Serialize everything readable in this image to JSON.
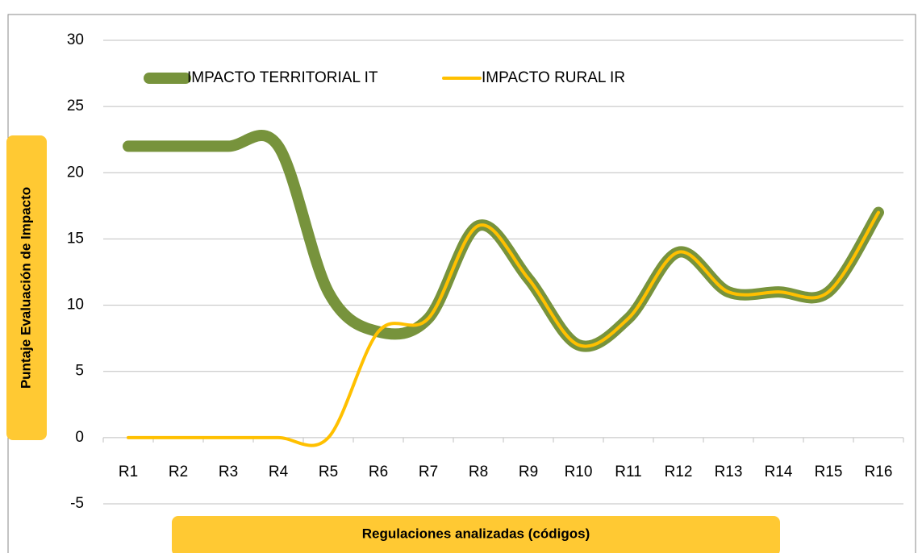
{
  "chart_data": {
    "type": "line",
    "categories": [
      "R1",
      "R2",
      "R3",
      "R4",
      "R5",
      "R6",
      "R7",
      "R8",
      "R9",
      "R10",
      "R11",
      "R12",
      "R13",
      "R14",
      "R15",
      "R16"
    ],
    "series": [
      {
        "name": "IMPACTO TERRITORIAL IT",
        "color": "#77933c",
        "values": [
          22,
          22,
          22,
          22,
          11,
          8,
          9,
          16,
          12,
          7,
          9,
          14,
          11,
          11,
          11,
          17
        ]
      },
      {
        "name": "IMPACTO RURAL IR",
        "color": "#ffc000",
        "values": [
          0,
          0,
          0,
          0,
          0,
          8,
          9,
          16,
          12,
          7,
          9,
          14,
          11,
          11,
          11,
          17
        ]
      }
    ],
    "x_label": "Regulaciones analizadas (códigos)",
    "y_label": "Puntaje Evaluación de Impacto",
    "ylim": [
      -5,
      30
    ],
    "yticks": [
      -5,
      0,
      5,
      10,
      15,
      20,
      25,
      30
    ],
    "grid": true,
    "legend": "top"
  }
}
